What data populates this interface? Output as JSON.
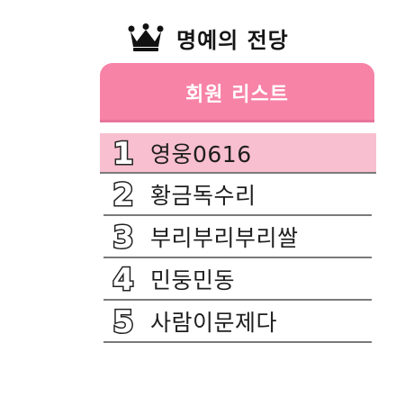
{
  "title": "명예의 전당",
  "header": {
    "label": "회원 리스트"
  },
  "ranks": [
    "1",
    "2",
    "3",
    "4",
    "5"
  ],
  "members": [
    "영웅0616",
    "황금독수리",
    "부리부리부리쌀",
    "민둥민동",
    "사람이문제다"
  ],
  "colors": {
    "header": "#f783a6",
    "highlight": "#f8bfd0",
    "divider": "#7a7a7a"
  },
  "icons": {
    "crown": "crown-icon"
  }
}
